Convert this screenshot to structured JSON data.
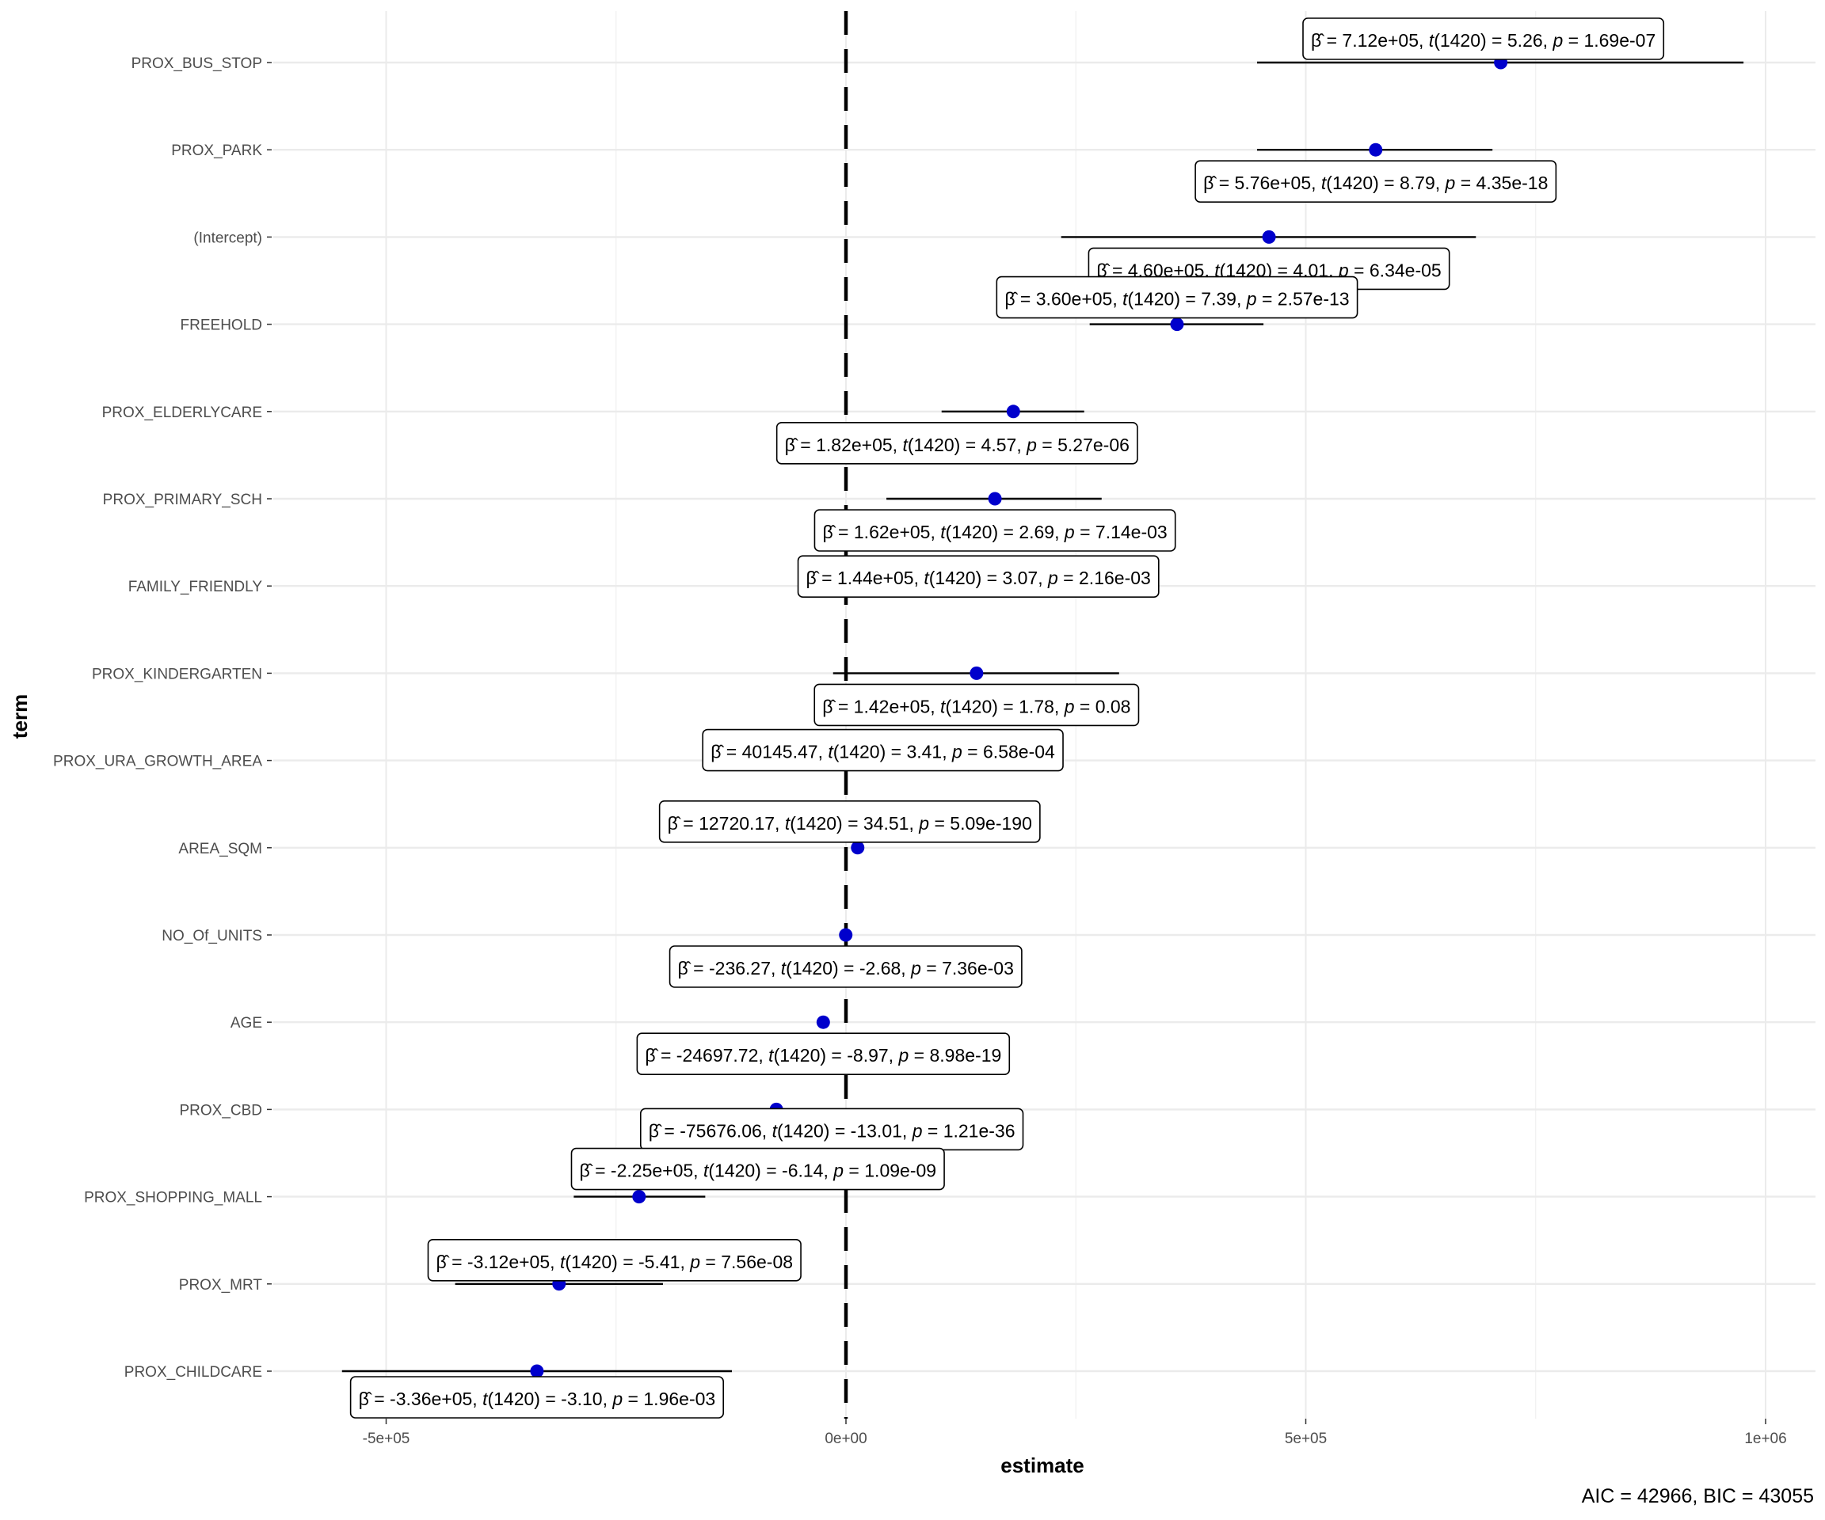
{
  "chart_data": {
    "type": "scatter",
    "subtype": "coefficient-plot (point estimate with 95% CI whiskers)",
    "title": "",
    "xlabel": "estimate",
    "ylabel": "term",
    "xlim": [
      -600000.0,
      1050000.0
    ],
    "xticks": [
      -500000,
      0,
      500000,
      1000000
    ],
    "xtick_labels": [
      "-5e+05",
      "0e+00",
      "5e+05",
      "1e+06"
    ],
    "reference_line": {
      "x": 0,
      "style": "dashed"
    },
    "grid": true,
    "point_color": "#0000CC",
    "caption": "AIC = 42966, BIC = 43055",
    "terms": [
      {
        "term": "PROX_BUS_STOP",
        "estimate": 712000,
        "ci": [
          447000,
          976000
        ],
        "label": {
          "beta": "7.12e+05",
          "df": "1420",
          "t": "5.26",
          "p": "1.69e-07"
        },
        "label_pos": "above"
      },
      {
        "term": "PROX_PARK",
        "estimate": 576000,
        "ci": [
          447000,
          703000
        ],
        "label": {
          "beta": "5.76e+05",
          "df": "1420",
          "t": "8.79",
          "p": "4.35e-18"
        },
        "label_pos": "below"
      },
      {
        "term": "(Intercept)",
        "estimate": 460000,
        "ci": [
          234000,
          685000
        ],
        "label": {
          "beta": "4.60e+05",
          "df": "1420",
          "t": "4.01",
          "p": "6.34e-05"
        },
        "label_pos": "below"
      },
      {
        "term": "FREEHOLD",
        "estimate": 360000,
        "ci": [
          265000,
          454000
        ],
        "label": {
          "beta": "3.60e+05",
          "df": "1420",
          "t": "7.39",
          "p": "2.57e-13"
        },
        "label_pos": "above"
      },
      {
        "term": "PROX_ELDERLYCARE",
        "estimate": 182000,
        "ci": [
          104000,
          259000
        ],
        "label": {
          "beta": "1.82e+05",
          "df": "1420",
          "t": "4.57",
          "p": "5.27e-06"
        },
        "label_pos": "below"
      },
      {
        "term": "PROX_PRIMARY_SCH",
        "estimate": 162000,
        "ci": [
          44000,
          278000
        ],
        "label": {
          "beta": "1.62e+05",
          "df": "1420",
          "t": "2.69",
          "p": "7.14e-03"
        },
        "label_pos": "below"
      },
      {
        "term": "FAMILY_FRIENDLY",
        "estimate": 144000,
        "ci": null,
        "label": {
          "beta": "1.44e+05",
          "df": "1420",
          "t": "3.07",
          "p": "2.16e-03"
        },
        "label_pos": "on"
      },
      {
        "term": "PROX_KINDERGARTEN",
        "estimate": 142000,
        "ci": [
          -14000,
          297000
        ],
        "label": {
          "beta": "1.42e+05",
          "df": "1420",
          "t": "1.78",
          "p": "0.08"
        },
        "label_pos": "below"
      },
      {
        "term": "PROX_URA_GROWTH_AREA",
        "estimate": 40145.47,
        "ci": null,
        "label": {
          "beta": "40145.47",
          "df": "1420",
          "t": "3.41",
          "p": "6.58e-04"
        },
        "label_pos": "on"
      },
      {
        "term": "AREA_SQM",
        "estimate": 12720.17,
        "ci": null,
        "label": {
          "beta": "12720.17",
          "df": "1420",
          "t": "34.51",
          "p": "5.09e-190"
        },
        "label_pos": "above"
      },
      {
        "term": "NO_Of_UNITS",
        "estimate": -236.27,
        "ci": null,
        "label": {
          "beta": "-236.27",
          "df": "1420",
          "t": "-2.68",
          "p": "7.36e-03"
        },
        "label_pos": "below"
      },
      {
        "term": "AGE",
        "estimate": -24697.72,
        "ci": null,
        "label": {
          "beta": "-24697.72",
          "df": "1420",
          "t": "-8.97",
          "p": "8.98e-19"
        },
        "label_pos": "below"
      },
      {
        "term": "PROX_CBD",
        "estimate": -75676.06,
        "ci": null,
        "label": {
          "beta": "-75676.06",
          "df": "1420",
          "t": "-13.01",
          "p": "1.21e-36"
        },
        "label_pos": "below"
      },
      {
        "term": "PROX_SHOPPING_MALL",
        "estimate": -225000,
        "ci": [
          -296000,
          -153000
        ],
        "label": {
          "beta": "-2.25e+05",
          "df": "1420",
          "t": "-6.14",
          "p": "1.09e-09"
        },
        "label_pos": "above"
      },
      {
        "term": "PROX_MRT",
        "estimate": -312000,
        "ci": [
          -425000,
          -199000
        ],
        "label": {
          "beta": "-3.12e+05",
          "df": "1420",
          "t": "-5.41",
          "p": "7.56e-08"
        },
        "label_pos": "above"
      },
      {
        "term": "PROX_CHILDCARE",
        "estimate": -336000,
        "ci": [
          -548000,
          -124000
        ],
        "label": {
          "beta": "-3.36e+05",
          "df": "1420",
          "t": "-3.10",
          "p": "1.96e-03"
        },
        "label_pos": "below"
      }
    ]
  }
}
